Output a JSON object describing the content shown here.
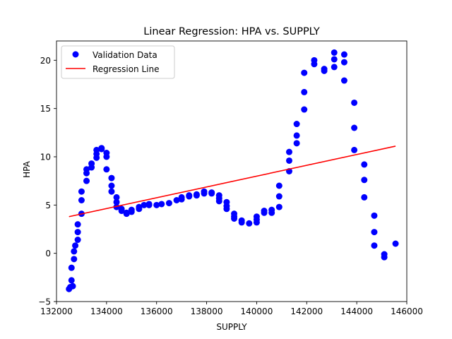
{
  "chart_data": {
    "type": "scatter",
    "title": "Linear Regression: HPA vs. SUPPLY",
    "xlabel": "SUPPLY",
    "ylabel": "HPA",
    "xlim": [
      132000,
      146000
    ],
    "ylim": [
      -5,
      22
    ],
    "xticks": [
      132000,
      134000,
      136000,
      138000,
      140000,
      142000,
      144000,
      146000
    ],
    "xtick_labels": [
      "132000",
      "134000",
      "136000",
      "138000",
      "140000",
      "142000",
      "144000",
      "146000"
    ],
    "yticks": [
      -5,
      0,
      5,
      10,
      15,
      20
    ],
    "ytick_labels": [
      "−5",
      "0",
      "5",
      "10",
      "15",
      "20"
    ],
    "grid": false,
    "legend_position": "top-left",
    "series": [
      {
        "name": "Validation Data",
        "kind": "scatter",
        "color": "#0000ff",
        "points": [
          [
            132500,
            -3.7
          ],
          [
            132550,
            -3.5
          ],
          [
            132600,
            -2.8
          ],
          [
            132600,
            -1.5
          ],
          [
            132650,
            -3.4
          ],
          [
            132700,
            -0.6
          ],
          [
            132700,
            0.2
          ],
          [
            132750,
            0.8
          ],
          [
            132850,
            1.4
          ],
          [
            132850,
            2.2
          ],
          [
            132850,
            3.0
          ],
          [
            133000,
            4.1
          ],
          [
            133000,
            5.5
          ],
          [
            133000,
            6.4
          ],
          [
            133200,
            7.5
          ],
          [
            133200,
            8.3
          ],
          [
            133200,
            8.7
          ],
          [
            133400,
            8.9
          ],
          [
            133400,
            9.3
          ],
          [
            133600,
            9.9
          ],
          [
            133600,
            10.3
          ],
          [
            133600,
            10.7
          ],
          [
            133800,
            10.8
          ],
          [
            133800,
            10.9
          ],
          [
            134000,
            10.4
          ],
          [
            134000,
            10.0
          ],
          [
            134000,
            8.7
          ],
          [
            134200,
            7.8
          ],
          [
            134200,
            7.0
          ],
          [
            134200,
            6.4
          ],
          [
            134400,
            5.8
          ],
          [
            134400,
            5.3
          ],
          [
            134400,
            4.8
          ],
          [
            134600,
            4.6
          ],
          [
            134600,
            4.4
          ],
          [
            134800,
            4.1
          ],
          [
            134800,
            4.2
          ],
          [
            135000,
            4.3
          ],
          [
            135000,
            4.5
          ],
          [
            135300,
            4.6
          ],
          [
            135300,
            4.8
          ],
          [
            135500,
            5.0
          ],
          [
            135700,
            5.1
          ],
          [
            135700,
            5.0
          ],
          [
            136000,
            5.0
          ],
          [
            136200,
            5.1
          ],
          [
            136500,
            5.2
          ],
          [
            136800,
            5.5
          ],
          [
            137000,
            5.6
          ],
          [
            137000,
            5.8
          ],
          [
            137300,
            5.9
          ],
          [
            137300,
            6.0
          ],
          [
            137600,
            6.1
          ],
          [
            137600,
            6.0
          ],
          [
            137900,
            6.2
          ],
          [
            137900,
            6.4
          ],
          [
            138200,
            6.3
          ],
          [
            138200,
            6.2
          ],
          [
            138500,
            6.0
          ],
          [
            138500,
            5.7
          ],
          [
            138500,
            5.4
          ],
          [
            138800,
            5.3
          ],
          [
            138800,
            4.9
          ],
          [
            138800,
            4.6
          ],
          [
            139100,
            4.1
          ],
          [
            139100,
            3.8
          ],
          [
            139100,
            3.6
          ],
          [
            139400,
            3.4
          ],
          [
            139400,
            3.2
          ],
          [
            139700,
            3.1
          ],
          [
            140000,
            3.2
          ],
          [
            140000,
            3.5
          ],
          [
            140000,
            3.8
          ],
          [
            140300,
            4.2
          ],
          [
            140300,
            4.4
          ],
          [
            140600,
            4.2
          ],
          [
            140600,
            4.5
          ],
          [
            140900,
            4.8
          ],
          [
            140900,
            5.9
          ],
          [
            140900,
            7.0
          ],
          [
            141300,
            8.5
          ],
          [
            141300,
            9.6
          ],
          [
            141300,
            10.5
          ],
          [
            141600,
            11.4
          ],
          [
            141600,
            12.2
          ],
          [
            141600,
            13.4
          ],
          [
            141900,
            14.9
          ],
          [
            141900,
            16.7
          ],
          [
            141900,
            18.7
          ],
          [
            142300,
            19.6
          ],
          [
            142300,
            20.0
          ],
          [
            142700,
            18.9
          ],
          [
            142700,
            19.1
          ],
          [
            143100,
            19.3
          ],
          [
            143100,
            20.1
          ],
          [
            143100,
            20.8
          ],
          [
            143500,
            20.6
          ],
          [
            143500,
            19.8
          ],
          [
            143500,
            17.9
          ],
          [
            143900,
            15.6
          ],
          [
            143900,
            13.0
          ],
          [
            143900,
            10.7
          ],
          [
            144300,
            9.2
          ],
          [
            144300,
            7.6
          ],
          [
            144300,
            5.8
          ],
          [
            144700,
            3.9
          ],
          [
            144700,
            2.2
          ],
          [
            144700,
            0.8
          ],
          [
            145100,
            -0.1
          ],
          [
            145100,
            -0.4
          ],
          [
            145550,
            1.0
          ]
        ]
      },
      {
        "name": "Regression Line",
        "kind": "line",
        "color": "#ff0000",
        "points": [
          [
            132500,
            3.8
          ],
          [
            145550,
            11.1
          ]
        ]
      }
    ]
  }
}
